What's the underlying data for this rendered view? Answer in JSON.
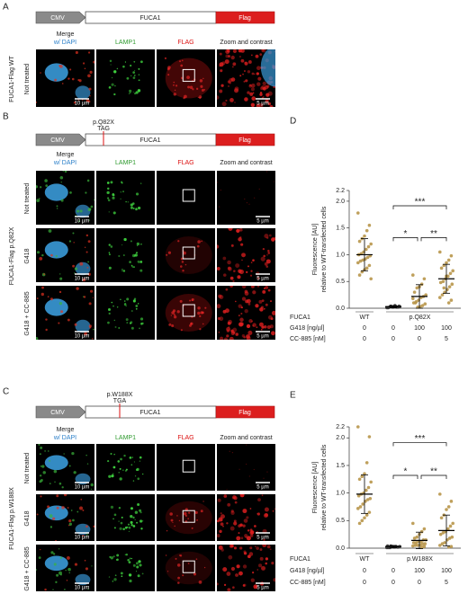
{
  "panels": [
    {
      "label": "A",
      "construct": [
        "CMV",
        "FUCA1",
        "Flag"
      ],
      "headers": [
        "Merge",
        "w/ DAPI",
        "LAMP1",
        "FLAG",
        "Zoom and contrast"
      ],
      "side": "FUCA1-Flag WT",
      "rows": [
        {
          "label": "Not treated",
          "scale_bars": [
            "10 µm",
            "5 µm"
          ]
        }
      ]
    },
    {
      "label": "B",
      "construct": [
        "CMV",
        "FUCA1",
        "Flag"
      ],
      "mutation": [
        "p.Q82X",
        "TAG"
      ],
      "headers": [
        "Merge",
        "w/ DAPI",
        "LAMP1",
        "FLAG",
        "Zoom and contrast"
      ],
      "side": "FUCA1-Flag p.Q82X",
      "rows": [
        {
          "label": "Not treated",
          "scale_bars": [
            "10 µm",
            "5 µm"
          ]
        },
        {
          "label": "G418",
          "scale_bars": [
            "10 µm",
            "5 µm"
          ]
        },
        {
          "label": "G418 + CC-885",
          "scale_bars": [
            "10 µm",
            "5 µm"
          ]
        }
      ]
    },
    {
      "label": "C",
      "construct": [
        "CMV",
        "FUCA1",
        "Flag"
      ],
      "mutation": [
        "p.W188X",
        "TGA"
      ],
      "headers": [
        "Merge",
        "w/ DAPI",
        "LAMP1",
        "FLAG",
        "Zoom and contrast"
      ],
      "side": "FUCA1-Flag p.W188X",
      "rows": [
        {
          "label": "Not treated",
          "scale_bars": [
            "10 µm",
            "5 µm"
          ]
        },
        {
          "label": "G418",
          "scale_bars": [
            "10 µm",
            "5 µm"
          ]
        },
        {
          "label": "G418 + CC-885",
          "scale_bars": [
            "10 µm",
            "5 µm"
          ]
        }
      ]
    }
  ],
  "chart_data": [
    {
      "type": "scatter",
      "label": "D",
      "ylabel": [
        "Fluorescence [AU]",
        "relative to WT-transfected cells"
      ],
      "ylim": [
        0,
        2.2
      ],
      "yticks": [
        {
          "value": 0,
          "label": "0.0"
        },
        {
          "value": 0.5,
          "label": "0.5"
        },
        {
          "value": 1,
          "label": "1.0"
        },
        {
          "value": 1.5,
          "label": "1.5"
        },
        {
          "value": 2,
          "label": "2.0"
        },
        {
          "value": 2.2,
          "label": "2.2"
        }
      ],
      "series": [
        {
          "color": "#b8964a",
          "values": [
            1.78,
            1.55,
            1.45,
            1.35,
            1.3,
            1.25,
            1.2,
            1.15,
            1.1,
            1.05,
            1.02,
            1.0,
            0.98,
            0.95,
            0.92,
            0.9,
            0.88,
            0.85,
            0.8,
            0.75,
            0.72,
            0.68,
            0.62,
            0.55
          ],
          "mean": 1.0,
          "sd": 0.3
        },
        {
          "color": "#333333",
          "values": [
            0.01,
            0.02,
            0.03,
            0.02,
            0.04,
            0.01,
            0.03,
            0.02,
            0.05,
            0.02,
            0.03,
            0.01,
            0.04,
            0.02
          ],
          "mean": 0.03,
          "sd": 0.02
        },
        {
          "color": "#b8964a",
          "values": [
            0.62,
            0.55,
            0.45,
            0.4,
            0.38,
            0.3,
            0.25,
            0.22,
            0.2,
            0.15,
            0.12,
            0.1,
            0.08,
            0.05,
            0.03,
            0.02,
            0.1,
            0.18
          ],
          "mean": 0.22,
          "sd": 0.22
        },
        {
          "color": "#b8964a",
          "values": [
            1.05,
            0.98,
            0.9,
            0.85,
            0.8,
            0.75,
            0.7,
            0.65,
            0.6,
            0.55,
            0.5,
            0.48,
            0.45,
            0.4,
            0.35,
            0.3,
            0.25,
            0.2,
            0.15,
            0.1,
            0.6,
            0.38
          ],
          "mean": 0.55,
          "sd": 0.27
        }
      ],
      "significance": [
        "***",
        "*",
        "**"
      ],
      "table": {
        "row_labels": [
          "FUCA1",
          "G418 [ng/µl]",
          "CC-885 [nM]"
        ],
        "fuca1": [
          "WT",
          "p.Q82X"
        ],
        "g418": [
          0,
          0,
          100,
          100
        ],
        "cc885": [
          0,
          0,
          0,
          5
        ]
      }
    },
    {
      "type": "scatter",
      "label": "E",
      "ylabel": [
        "Fluorescence [AU]",
        "relative to WT-transfected cells"
      ],
      "ylim": [
        0,
        2.2
      ],
      "yticks": [
        {
          "value": 0,
          "label": "0.0"
        },
        {
          "value": 0.5,
          "label": "0.5"
        },
        {
          "value": 1,
          "label": "1.0"
        },
        {
          "value": 1.5,
          "label": "1.5"
        },
        {
          "value": 2,
          "label": "2.0"
        },
        {
          "value": 2.2,
          "label": "2.2"
        }
      ],
      "series": [
        {
          "color": "#b8964a",
          "values": [
            2.2,
            2.02,
            1.55,
            1.35,
            1.3,
            1.25,
            1.2,
            1.1,
            1.05,
            1.0,
            0.98,
            0.95,
            0.9,
            0.88,
            0.85,
            0.8,
            0.75,
            0.72,
            0.65,
            0.6,
            0.55,
            0.5,
            0.45
          ],
          "mean": 0.98,
          "sd": 0.35
        },
        {
          "color": "#333333",
          "values": [
            0.01,
            0.02,
            0.03,
            0.02,
            0.04,
            0.01,
            0.03,
            0.02,
            0.02,
            0.03,
            0.01,
            0.04
          ],
          "mean": 0.03,
          "sd": 0.02
        },
        {
          "color": "#b8964a",
          "values": [
            0.45,
            0.35,
            0.3,
            0.25,
            0.2,
            0.18,
            0.15,
            0.15,
            0.12,
            0.12,
            0.1,
            0.1,
            0.08,
            0.08,
            0.06,
            0.05,
            0.05,
            0.04,
            0.03,
            0.02
          ],
          "mean": 0.14,
          "sd": 0.15
        },
        {
          "color": "#b8964a",
          "values": [
            0.98,
            0.85,
            0.75,
            0.7,
            0.6,
            0.55,
            0.45,
            0.4,
            0.35,
            0.3,
            0.28,
            0.25,
            0.2,
            0.18,
            0.15,
            0.1,
            0.08,
            0.05,
            0.03,
            0.02
          ],
          "mean": 0.32,
          "sd": 0.28
        }
      ],
      "significance": [
        "***",
        "*",
        "**"
      ],
      "table": {
        "row_labels": [
          "FUCA1",
          "G418 [ng/µl]",
          "CC-885 [nM]"
        ],
        "fuca1": [
          "WT",
          "p.W188X"
        ],
        "g418": [
          0,
          0,
          100,
          100
        ],
        "cc885": [
          0,
          0,
          0,
          5
        ]
      }
    }
  ]
}
